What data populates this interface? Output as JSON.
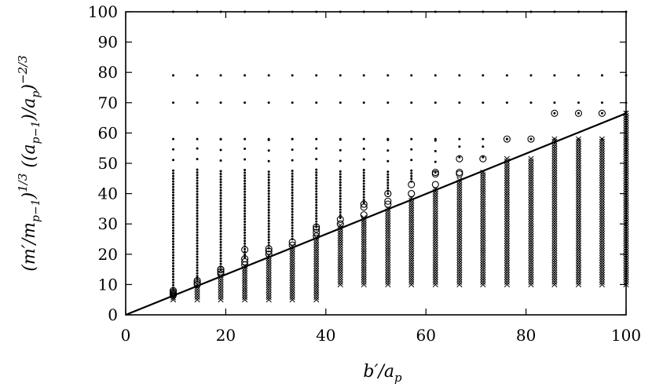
{
  "chart_data": {
    "type": "scatter",
    "title": "",
    "xlabel": "b′/a_p",
    "ylabel": "(m′/m_{p−1})^{1/3} ((a_{p−1})/a_p)^{−2/3}",
    "xlim": [
      0,
      100
    ],
    "ylim": [
      0,
      100
    ],
    "x_ticks": [
      0,
      20,
      40,
      60,
      80,
      100
    ],
    "y_ticks": [
      0,
      10,
      20,
      30,
      40,
      50,
      60,
      70,
      80,
      90,
      100
    ],
    "grid": false,
    "legend": "none",
    "line": {
      "x": [
        0,
        100
      ],
      "y": [
        0,
        66.5
      ]
    },
    "columns_x": [
      9.5,
      14.3,
      19.0,
      23.8,
      28.6,
      33.3,
      38.1,
      42.9,
      47.6,
      52.4,
      57.1,
      61.9,
      66.7,
      71.4,
      76.2,
      81.0,
      85.7,
      90.5,
      95.2,
      100.0
    ],
    "columns": [
      {
        "x": 9.5,
        "cross_ymin": 5,
        "cross_ymax": 7,
        "circles": [
          6.5,
          7.0,
          7.5,
          8.0
        ],
        "dot_ymin": 8,
        "dot_ymax": 58
      },
      {
        "x": 14.3,
        "cross_ymin": 5,
        "cross_ymax": 10,
        "circles": [
          10.0,
          10.6,
          11.3
        ],
        "dot_ymin": 11,
        "dot_ymax": 58
      },
      {
        "x": 19.0,
        "cross_ymin": 5,
        "cross_ymax": 12.5,
        "circles": [
          13.5,
          14.2,
          14.9,
          15.0
        ],
        "dot_ymin": 15,
        "dot_ymax": 58
      },
      {
        "x": 23.8,
        "cross_ymin": 5,
        "cross_ymax": 16,
        "circles": [
          16.5,
          17.5,
          18.5,
          21.5
        ],
        "dot_ymin": 19,
        "dot_ymax": 58
      },
      {
        "x": 28.6,
        "cross_ymin": 5,
        "cross_ymax": 19.5,
        "circles": [
          20.0,
          21.0,
          21.8
        ],
        "dot_ymin": 22,
        "dot_ymax": 58
      },
      {
        "x": 33.3,
        "cross_ymin": 5,
        "cross_ymax": 22.5,
        "circles": [
          23.0,
          24.0
        ],
        "dot_ymin": 25,
        "dot_ymax": 58
      },
      {
        "x": 38.1,
        "cross_ymin": 5,
        "cross_ymax": 25.5,
        "circles": [
          26.0,
          27.2,
          28.3,
          29.0
        ],
        "dot_ymin": 29,
        "dot_ymax": 58
      },
      {
        "x": 42.9,
        "cross_ymin": 10,
        "cross_ymax": 29.5,
        "circles": [
          30.0,
          31.5
        ],
        "dot_ymin": 32,
        "dot_ymax": 58
      },
      {
        "x": 47.6,
        "cross_ymin": 10,
        "cross_ymax": 32,
        "circles": [
          33.0,
          35.5,
          36.5
        ],
        "dot_ymin": 37,
        "dot_ymax": 58
      },
      {
        "x": 52.4,
        "cross_ymin": 10,
        "cross_ymax": 35,
        "circles": [
          36.5,
          37.5,
          40.0
        ],
        "dot_ymin": 40,
        "dot_ymax": 58
      },
      {
        "x": 57.1,
        "cross_ymin": 10,
        "cross_ymax": 38.5,
        "circles": [
          40.0,
          43.0
        ],
        "dot_ymin": 44,
        "dot_ymax": 58
      },
      {
        "x": 61.9,
        "cross_ymin": 10,
        "cross_ymax": 41.5,
        "circles": [
          43.0,
          46.5,
          47.0
        ],
        "dot_ymin": 47,
        "dot_ymax": 58
      },
      {
        "x": 66.7,
        "cross_ymin": 10,
        "cross_ymax": 44.5,
        "circles": [
          46.5,
          47.0,
          51.5
        ],
        "dot_ymin": 52,
        "dot_ymax": 58
      },
      {
        "x": 71.4,
        "cross_ymin": 10,
        "cross_ymax": 47,
        "circles": [
          51.5
        ],
        "dot_ymin": 52,
        "dot_ymax": 58
      },
      {
        "x": 76.2,
        "cross_ymin": 10,
        "cross_ymax": 51.5,
        "circles": [
          58.0
        ],
        "dot_ymin": 58,
        "dot_ymax": 58
      },
      {
        "x": 81.0,
        "cross_ymin": 10,
        "cross_ymax": 51.5,
        "circles": [
          58.0
        ],
        "dot_ymin": 58,
        "dot_ymax": 58
      },
      {
        "x": 85.7,
        "cross_ymin": 10,
        "cross_ymax": 58,
        "circles": [
          66.5
        ],
        "dot_ymin": 66.5,
        "dot_ymax": 66.5
      },
      {
        "x": 90.5,
        "cross_ymin": 10,
        "cross_ymax": 58,
        "circles": [
          66.5
        ],
        "dot_ymin": 66.5,
        "dot_ymax": 66.5
      },
      {
        "x": 95.2,
        "cross_ymin": 10,
        "cross_ymax": 58,
        "circles": [
          66.5
        ],
        "dot_ymin": 66.5,
        "dot_ymax": 66.5
      },
      {
        "x": 100.0,
        "cross_ymin": 10,
        "cross_ymax": 66.5,
        "circles": [],
        "dot_ymin": 67,
        "dot_ymax": 67
      }
    ],
    "upper_dot_rows": [
      70,
      79,
      100
    ],
    "colors": {
      "ink": "#000000",
      "background": "#ffffff"
    }
  }
}
